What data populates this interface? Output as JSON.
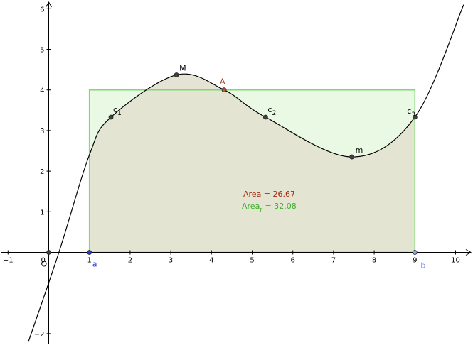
{
  "chart_data": {
    "type": "line",
    "xlim": [
      -1,
      10
    ],
    "ylim": [
      -2,
      6
    ],
    "x_ticks": [
      "−1",
      "1",
      "2",
      "3",
      "4",
      "5",
      "6",
      "7",
      "8",
      "9",
      "10"
    ],
    "y_ticks": [
      "1",
      "2",
      "3",
      "4",
      "5",
      "6"
    ],
    "neg_y_tick": "−2",
    "origin_label": "0",
    "origin_point_label": "O",
    "interval": {
      "a": 1,
      "b": 9
    },
    "mean_value_rect_height": 4.0,
    "curve": {
      "description_points": [
        {
          "x": -0.5,
          "y": -2.2
        },
        {
          "x": 0.25,
          "y": 0
        },
        {
          "x": 1,
          "y": 2.4
        },
        {
          "x": 1.53,
          "y": 3.33
        },
        {
          "x": 3.14,
          "y": 4.37
        },
        {
          "x": 4.31,
          "y": 4.0
        },
        {
          "x": 5.33,
          "y": 3.33
        },
        {
          "x": 7.45,
          "y": 2.35
        },
        {
          "x": 9,
          "y": 3.33
        },
        {
          "x": 10.2,
          "y": 6.1
        }
      ]
    },
    "points": [
      {
        "name": "M",
        "x": 3.14,
        "y": 4.37,
        "kind": "max"
      },
      {
        "name": "A",
        "x": 4.31,
        "y": 4.0,
        "kind": "mean"
      },
      {
        "name": "c",
        "sub": "1",
        "x": 1.53,
        "y": 3.33,
        "kind": "c"
      },
      {
        "name": "c",
        "sub": "2",
        "x": 5.33,
        "y": 3.33,
        "kind": "c"
      },
      {
        "name": "c",
        "sub": "3",
        "x": 9.0,
        "y": 3.33,
        "kind": "c"
      },
      {
        "name": "m",
        "x": 7.45,
        "y": 2.35,
        "kind": "min"
      },
      {
        "name": "a",
        "x": 1,
        "y": 0,
        "kind": "endpoint"
      },
      {
        "name": "b",
        "x": 9,
        "y": 0,
        "kind": "endpoint"
      },
      {
        "name": "O",
        "x": 0,
        "y": 0,
        "kind": "origin"
      }
    ],
    "annotations": {
      "area_text": "Area = 26.67",
      "area_r_prefix": "Area",
      "area_r_sub": "r",
      "area_r_value": " = 32.08"
    },
    "colors": {
      "curve": "#000000",
      "rect_stroke": "#7ddc6e",
      "rect_fill": "#e9f9e4",
      "under_fill": "#e4e3d2",
      "over_fill": "#f3e3df",
      "area_text": "#a52a10",
      "area_r_text": "#3fae2a",
      "point_A": "#c0562e",
      "point_a": "#1f3fd0",
      "point_b": "#8a9ef0",
      "point_dark": "#404040",
      "label_a": "#1f3fd0",
      "label_b": "#7f8ff0",
      "label_A": "#a0401a"
    }
  }
}
